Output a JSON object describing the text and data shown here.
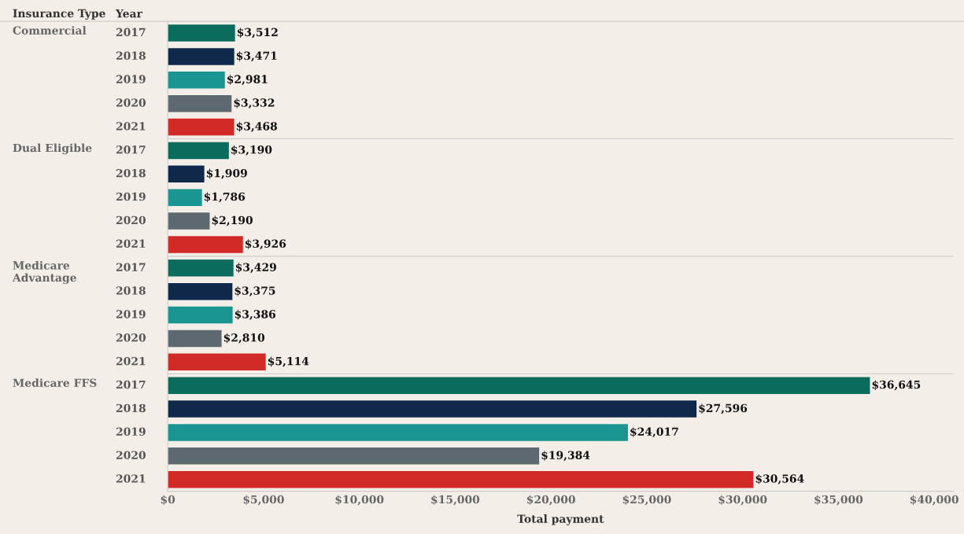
{
  "chart_data": {
    "type": "bar",
    "orientation": "horizontal",
    "xlabel": "Total payment",
    "ylabel": "Insurance Type",
    "legend_title": "Year",
    "categories": [
      "Commercial",
      "Dual Eligible",
      "Medicare Advantage",
      "Medicare FFS"
    ],
    "series": [
      {
        "name": "2017",
        "color": "#0b6b5c",
        "values": [
          3512,
          3190,
          3429,
          36645
        ],
        "value_labels": [
          "$3,512",
          "$3,190",
          "$3,429",
          "$36,645"
        ]
      },
      {
        "name": "2018",
        "color": "#10294a",
        "values": [
          3471,
          1909,
          3375,
          27596
        ],
        "value_labels": [
          "$3,471",
          "$1,909",
          "$3,375",
          "$27,596"
        ]
      },
      {
        "name": "2019",
        "color": "#1a9591",
        "values": [
          2981,
          1786,
          3386,
          24017
        ],
        "value_labels": [
          "$2,981",
          "$1,786",
          "$3,386",
          "$24,017"
        ]
      },
      {
        "name": "2020",
        "color": "#5e6871",
        "values": [
          3332,
          2190,
          2810,
          19384
        ],
        "value_labels": [
          "$3,332",
          "$2,190",
          "$2,810",
          "$19,384"
        ]
      },
      {
        "name": "2021",
        "color": "#d22b27",
        "values": [
          3468,
          3926,
          5114,
          30564
        ],
        "value_labels": [
          "$3,468",
          "$3,926",
          "$5,114",
          "$30,564"
        ]
      }
    ],
    "xlim": [
      0,
      41000
    ],
    "xticks": [
      {
        "value": 0,
        "label": "$0"
      },
      {
        "value": 5000,
        "label": "$5,000"
      },
      {
        "value": 10000,
        "label": "$10,000"
      },
      {
        "value": 15000,
        "label": "$15,000"
      },
      {
        "value": 20000,
        "label": "$20,000"
      },
      {
        "value": 25000,
        "label": "$25,000"
      },
      {
        "value": 30000,
        "label": "$30,000"
      },
      {
        "value": 35000,
        "label": "$35,000"
      },
      {
        "value": 40000,
        "label": "$40,000"
      }
    ]
  }
}
